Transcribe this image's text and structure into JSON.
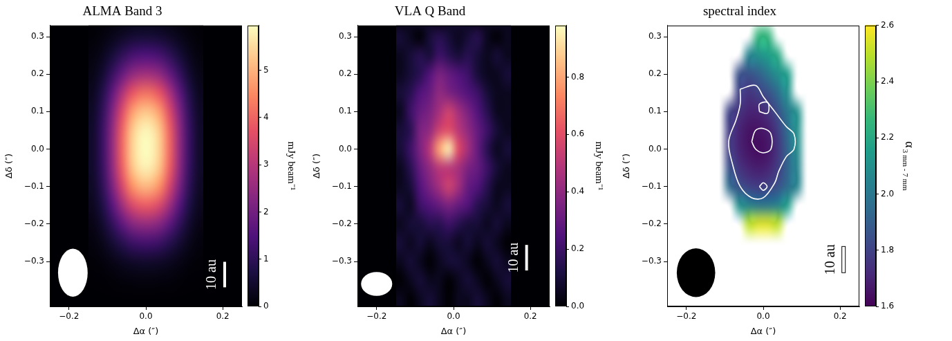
{
  "chart_data": [
    {
      "type": "heatmap",
      "title": "ALMA Band 3",
      "x_label": "Δα (″)",
      "y_label": "Δδ (″)",
      "grid": false,
      "xlim": [
        -0.25,
        0.25
      ],
      "ylim": [
        -0.42,
        0.33
      ],
      "xticks": [
        {
          "value": -0.2,
          "label": "−0.2"
        },
        {
          "value": 0,
          "label": "0.0"
        },
        0.2
      ],
      "yticks": [
        {
          "value": -0.3,
          "label": "−0.3"
        },
        {
          "value": -0.2,
          "label": "−0.2"
        },
        {
          "value": -0.1,
          "label": "−0.1"
        },
        {
          "value": 0,
          "label": "0.0"
        },
        0.1,
        0.2,
        0.3
      ],
      "x": [
        -0.1375,
        -0.1125,
        -0.0875,
        -0.0625,
        -0.0375,
        -0.0125,
        0.0125,
        0.0375,
        0.0625,
        0.0875,
        0.1125,
        0.1375
      ],
      "y": [
        -0.4,
        -0.35,
        -0.3,
        -0.25,
        -0.2,
        -0.15,
        -0.1,
        -0.05,
        0,
        0.05,
        0.1,
        0.15,
        0.2,
        0.25,
        0.3,
        0.35
      ],
      "z": [
        [
          0,
          0,
          0,
          0,
          0,
          0,
          0,
          0,
          0,
          0,
          0,
          0
        ],
        [
          0.01,
          0.02,
          0.05,
          0.08,
          0.11,
          0.12,
          0.12,
          0.11,
          0.08,
          0.05,
          0.02,
          0.01
        ],
        [
          0.04,
          0.09,
          0.2,
          0.32,
          0.42,
          0.47,
          0.47,
          0.42,
          0.32,
          0.2,
          0.09,
          0.04
        ],
        [
          0.1,
          0.26,
          0.55,
          0.88,
          1.17,
          1.3,
          1.3,
          1.17,
          0.88,
          0.55,
          0.26,
          0.1
        ],
        [
          0.2,
          0.5,
          1.04,
          1.68,
          2.23,
          2.48,
          2.48,
          2.23,
          1.68,
          1.04,
          0.5,
          0.2
        ],
        [
          0.31,
          0.77,
          1.61,
          2.61,
          3.45,
          3.84,
          3.84,
          3.45,
          2.61,
          1.61,
          0.77,
          0.31
        ],
        [
          0.4,
          1.0,
          2.11,
          3.41,
          4.51,
          5.02,
          5.02,
          4.51,
          3.41,
          2.11,
          1.0,
          0.4
        ],
        [
          0.46,
          1.14,
          2.41,
          3.89,
          5.15,
          5.72,
          5.72,
          5.15,
          3.89,
          2.41,
          1.14,
          0.46
        ],
        [
          0.47,
          1.18,
          2.48,
          4.01,
          5.31,
          5.9,
          5.9,
          5.31,
          4.01,
          2.48,
          1.18,
          0.47
        ],
        [
          0.46,
          1.16,
          2.43,
          3.93,
          5.2,
          5.78,
          5.78,
          5.2,
          3.93,
          2.43,
          1.16,
          0.46
        ],
        [
          0.41,
          1.04,
          2.18,
          3.53,
          4.67,
          5.19,
          5.19,
          4.67,
          3.53,
          2.18,
          1.04,
          0.41
        ],
        [
          0.33,
          0.83,
          1.74,
          2.81,
          3.72,
          4.13,
          4.13,
          3.72,
          2.81,
          1.74,
          0.83,
          0.33
        ],
        [
          0.21,
          0.53,
          1.12,
          1.8,
          2.39,
          2.66,
          2.66,
          2.39,
          1.8,
          1.12,
          0.53,
          0.21
        ],
        [
          0.12,
          0.3,
          0.62,
          1.0,
          1.33,
          1.48,
          1.48,
          1.33,
          1.0,
          0.62,
          0.3,
          0.12
        ],
        [
          0.05,
          0.12,
          0.25,
          0.4,
          0.53,
          0.59,
          0.59,
          0.53,
          0.4,
          0.25,
          0.12,
          0.05
        ],
        [
          0.01,
          0.04,
          0.07,
          0.12,
          0.16,
          0.18,
          0.18,
          0.16,
          0.12,
          0.07,
          0.04,
          0.01
        ]
      ],
      "colorbar": {
        "label": "mJy beam⁻¹",
        "lim": [
          0,
          5.95
        ],
        "ticks": [
          0,
          1,
          2,
          3,
          4,
          5
        ]
      },
      "beam": {
        "x": -0.19,
        "y": -0.33,
        "width": 0.077,
        "height": 0.128,
        "color": "#ffffff"
      },
      "scale_bar": {
        "label": "10 au",
        "x": 0.205,
        "y": [
          -0.37,
          -0.3
        ],
        "color": "#ffffff"
      }
    },
    {
      "type": "heatmap",
      "title": "VLA Q Band",
      "x_label": "Δα (″)",
      "y_label": "Δδ (″)",
      "grid": false,
      "xlim": [
        -0.25,
        0.25
      ],
      "ylim": [
        -0.42,
        0.33
      ],
      "xticks": [
        {
          "value": -0.2,
          "label": "−0.2"
        },
        {
          "value": 0,
          "label": "0.0"
        },
        0.2
      ],
      "yticks": [
        {
          "value": -0.3,
          "label": "−0.3"
        },
        {
          "value": -0.2,
          "label": "−0.2"
        },
        {
          "value": -0.1,
          "label": "−0.1"
        },
        {
          "value": 0,
          "label": "0.0"
        },
        0.1,
        0.2,
        0.3
      ],
      "x": [
        -0.1375,
        -0.1125,
        -0.0875,
        -0.0625,
        -0.0375,
        -0.0125,
        0.0125,
        0.0375,
        0.0625,
        0.0875,
        0.1125,
        0.1375
      ],
      "y": [
        -0.4,
        -0.35,
        -0.3,
        -0.25,
        -0.2,
        -0.15,
        -0.1,
        -0.05,
        0,
        0.05,
        0.1,
        0.15,
        0.2,
        0.25,
        0.3,
        0.35
      ],
      "z": [
        [
          0.05,
          0,
          0.05,
          0.1,
          0.05,
          0,
          0.05,
          0.05,
          0.1,
          0.05,
          0,
          0.05
        ],
        [
          0,
          0.05,
          0.1,
          0.05,
          0.05,
          0,
          0.05,
          0.1,
          0.05,
          0,
          0.05,
          0.1
        ],
        [
          0.05,
          0.1,
          0.05,
          0,
          0.05,
          0.1,
          0.1,
          0.05,
          0,
          0.05,
          0.1,
          0.05
        ],
        [
          0.1,
          0.05,
          0.1,
          0.05,
          0.1,
          0.1,
          0.05,
          0.1,
          0.05,
          0.1,
          0.05,
          0
        ],
        [
          0.05,
          0.1,
          0.1,
          0.15,
          0.15,
          0.2,
          0.15,
          0.1,
          0.1,
          0.05,
          0.1,
          0.05
        ],
        [
          0.1,
          0.05,
          0.2,
          0.25,
          0.3,
          0.35,
          0.3,
          0.25,
          0.15,
          0.1,
          0.05,
          0.1
        ],
        [
          0.05,
          0.1,
          0.25,
          0.35,
          0.45,
          0.55,
          0.45,
          0.3,
          0.25,
          0.15,
          0.05,
          0.05
        ],
        [
          0.05,
          0.15,
          0.3,
          0.4,
          0.5,
          0.5,
          0.45,
          0.35,
          0.3,
          0.2,
          0.1,
          0.05
        ],
        [
          0.1,
          0.2,
          0.35,
          0.5,
          0.8,
          0.95,
          0.6,
          0.45,
          0.3,
          0.15,
          0.05,
          0.1
        ],
        [
          0.1,
          0.15,
          0.35,
          0.4,
          0.55,
          0.6,
          0.5,
          0.4,
          0.3,
          0.2,
          0.1,
          0.05
        ],
        [
          0.05,
          0.2,
          0.3,
          0.35,
          0.45,
          0.55,
          0.45,
          0.35,
          0.25,
          0.15,
          0.05,
          0.05
        ],
        [
          0.1,
          0.15,
          0.25,
          0.3,
          0.4,
          0.35,
          0.3,
          0.25,
          0.2,
          0.1,
          0.05,
          0.05
        ],
        [
          0.05,
          0.1,
          0.15,
          0.25,
          0.35,
          0.3,
          0.25,
          0.2,
          0.1,
          0.05,
          0.05,
          0.1
        ],
        [
          0.05,
          0.1,
          0.15,
          0.1,
          0.2,
          0.15,
          0.1,
          0.15,
          0.1,
          0.05,
          0.1,
          0.05
        ],
        [
          0.1,
          0.05,
          0,
          0.1,
          0.15,
          0.1,
          0.05,
          0.1,
          0.15,
          0.05,
          0,
          0.05
        ],
        [
          0,
          0.05,
          0.1,
          0.05,
          0,
          0.05,
          0.1,
          0.05,
          0,
          0.05,
          0.1,
          0.05
        ]
      ],
      "colorbar": {
        "label": "mJy beam⁻¹",
        "lim": [
          0,
          0.98
        ],
        "ticks": [
          {
            "value": 0,
            "label": "0.0"
          },
          0.2,
          0.4,
          0.6,
          0.8
        ]
      },
      "beam": {
        "x": -0.2,
        "y": -0.36,
        "width": 0.081,
        "height": 0.064,
        "color": "#ffffff"
      },
      "scale_bar": {
        "label": "10 au",
        "x": 0.19,
        "y": [
          -0.325,
          -0.255
        ],
        "color": "#ffffff"
      }
    },
    {
      "type": "heatmap",
      "title": "spectral index",
      "x_label": "Δα (″)",
      "y_label": "Δδ (″)",
      "grid": false,
      "xlim": [
        -0.25,
        0.25
      ],
      "ylim": [
        -0.42,
        0.33
      ],
      "xticks": [
        {
          "value": -0.2,
          "label": "−0.2"
        },
        {
          "value": 0,
          "label": "0.0"
        },
        0.2
      ],
      "yticks": [
        {
          "value": -0.3,
          "label": "−0.3"
        },
        {
          "value": -0.2,
          "label": "−0.2"
        },
        {
          "value": -0.1,
          "label": "−0.1"
        },
        {
          "value": 0,
          "label": "0.0"
        },
        0.1,
        0.2,
        0.3
      ],
      "x": [
        -0.1375,
        -0.1125,
        -0.0875,
        -0.0625,
        -0.0375,
        -0.0125,
        0.0125,
        0.0375,
        0.0625,
        0.0875,
        0.1125,
        0.1375
      ],
      "y": [
        -0.4,
        -0.35,
        -0.3,
        -0.25,
        -0.2,
        -0.15,
        -0.1,
        -0.05,
        0,
        0.05,
        0.1,
        0.15,
        0.2,
        0.25,
        0.3,
        0.35
      ],
      "z": [
        [
          null,
          null,
          null,
          null,
          null,
          null,
          null,
          null,
          null,
          null,
          null,
          null
        ],
        [
          null,
          null,
          null,
          null,
          null,
          null,
          null,
          null,
          null,
          null,
          null,
          null
        ],
        [
          null,
          null,
          null,
          null,
          null,
          null,
          null,
          null,
          null,
          null,
          null,
          null
        ],
        [
          null,
          null,
          null,
          null,
          null,
          null,
          null,
          null,
          null,
          null,
          null,
          null
        ],
        [
          null,
          null,
          null,
          null,
          2.5,
          2.55,
          2.55,
          2.5,
          null,
          null,
          null,
          null
        ],
        [
          null,
          null,
          null,
          2.1,
          2.05,
          2.0,
          2.0,
          2.05,
          2.15,
          null,
          null,
          null
        ],
        [
          null,
          null,
          1.95,
          1.85,
          1.8,
          1.78,
          1.8,
          1.85,
          1.95,
          2.05,
          null,
          null
        ],
        [
          null,
          null,
          1.85,
          1.75,
          1.7,
          1.68,
          1.7,
          1.78,
          1.92,
          2.05,
          null,
          null
        ],
        [
          null,
          null,
          1.78,
          1.7,
          1.65,
          1.63,
          1.66,
          1.75,
          1.92,
          2.08,
          null,
          null
        ],
        [
          null,
          null,
          1.78,
          1.7,
          1.65,
          1.65,
          1.68,
          1.78,
          1.95,
          2.1,
          null,
          null
        ],
        [
          null,
          null,
          1.8,
          1.75,
          1.7,
          1.7,
          1.75,
          1.85,
          2.0,
          2.1,
          null,
          null
        ],
        [
          null,
          null,
          null,
          1.8,
          1.75,
          1.8,
          1.85,
          1.95,
          2.1,
          null,
          null,
          null
        ],
        [
          null,
          null,
          null,
          1.85,
          1.85,
          1.9,
          2.0,
          2.1,
          2.15,
          null,
          null,
          null
        ],
        [
          null,
          null,
          null,
          null,
          2.05,
          2.1,
          2.15,
          2.2,
          null,
          null,
          null,
          null
        ],
        [
          null,
          null,
          null,
          null,
          null,
          2.25,
          2.25,
          null,
          null,
          null,
          null,
          null
        ],
        [
          null,
          null,
          null,
          null,
          null,
          null,
          null,
          null,
          null,
          null,
          null,
          null
        ]
      ],
      "contours": {
        "color": "#ffffff",
        "lines": [
          [
            [
              -0.06,
              0.16
            ],
            [
              -0.02,
              0.17
            ],
            [
              0.0,
              0.14
            ],
            [
              0.03,
              0.1
            ],
            [
              0.06,
              0.06
            ],
            [
              0.08,
              0.04
            ],
            [
              0.08,
              0.0
            ],
            [
              0.06,
              -0.02
            ],
            [
              0.04,
              -0.06
            ],
            [
              0.03,
              -0.09
            ],
            [
              0.0,
              -0.13
            ],
            [
              -0.03,
              -0.13
            ],
            [
              -0.06,
              -0.1
            ],
            [
              -0.08,
              -0.04
            ],
            [
              -0.09,
              0.02
            ],
            [
              -0.07,
              0.08
            ],
            [
              -0.06,
              0.12
            ],
            [
              -0.06,
              0.16
            ]
          ],
          [
            [
              -0.03,
              0.02
            ],
            [
              -0.02,
              0.05
            ],
            [
              0.0,
              0.055
            ],
            [
              0.02,
              0.04
            ],
            [
              0.02,
              0.0
            ],
            [
              0.0,
              -0.01
            ],
            [
              -0.02,
              0.0
            ],
            [
              -0.03,
              0.02
            ]
          ],
          [
            [
              -0.01,
              0.1
            ],
            [
              -0.01,
              0.12
            ],
            [
              0.01,
              0.125
            ],
            [
              0.015,
              0.11
            ],
            [
              0.01,
              0.095
            ],
            [
              -0.01,
              0.1
            ]
          ],
          [
            [
              -0.01,
              -0.1
            ],
            [
              0.0,
              -0.09
            ],
            [
              0.01,
              -0.1
            ],
            [
              0.0,
              -0.11
            ],
            [
              -0.01,
              -0.1
            ]
          ]
        ]
      },
      "colorbar": {
        "label": {
          "text": "α",
          "subscript": "3 mm - 7 mm"
        },
        "lim": [
          1.6,
          2.6
        ],
        "ticks": [
          1.6,
          1.8,
          {
            "value": 2,
            "label": "2.0"
          },
          2.2,
          2.4,
          2.6
        ]
      },
      "beam": {
        "x": -0.175,
        "y": -0.33,
        "width": 0.1,
        "height": 0.13,
        "color": "#000000"
      },
      "scale_bar": {
        "label": "10 au",
        "x": 0.209,
        "y": [
          -0.33,
          -0.26
        ],
        "color": "#ffffff"
      }
    }
  ]
}
